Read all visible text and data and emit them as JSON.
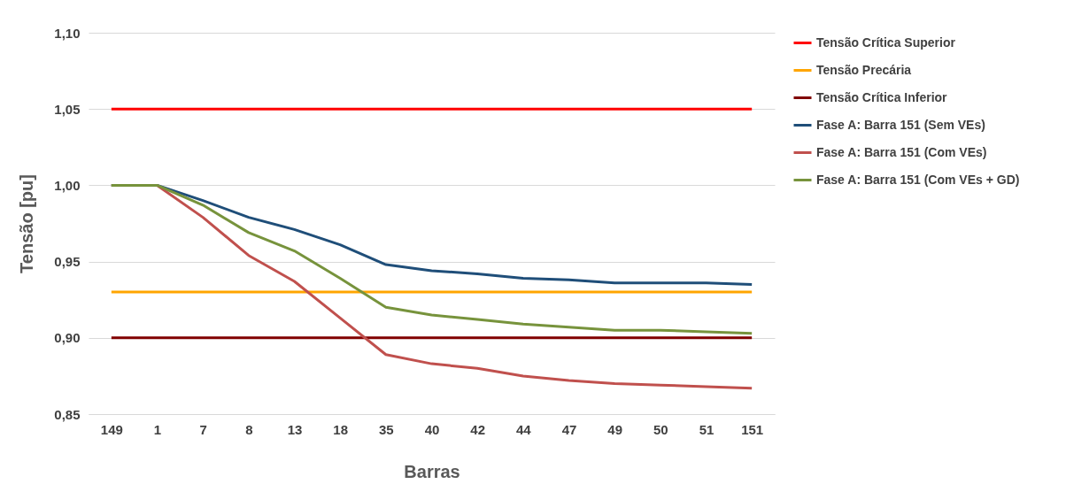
{
  "chart_data": {
    "type": "line",
    "xlabel": "Barras",
    "ylabel": "Tensão [pu]",
    "categories": [
      "149",
      "1",
      "7",
      "8",
      "13",
      "18",
      "35",
      "40",
      "42",
      "44",
      "47",
      "49",
      "50",
      "51",
      "151"
    ],
    "ylim": [
      0.85,
      1.1
    ],
    "yticks": [
      {
        "value": 0.85,
        "label": "0,85"
      },
      {
        "value": 0.9,
        "label": "0,90"
      },
      {
        "value": 0.95,
        "label": "0,95"
      },
      {
        "value": 1.0,
        "label": "1,00"
      },
      {
        "value": 1.05,
        "label": "1,05"
      },
      {
        "value": 1.1,
        "label": "1,10"
      }
    ],
    "grid": "y",
    "legend": "right",
    "line_style": "solid",
    "marker": "none",
    "series": [
      {
        "name": "Tensão Crítica Superior",
        "color": "#ff0000",
        "values": [
          1.05,
          1.05,
          1.05,
          1.05,
          1.05,
          1.05,
          1.05,
          1.05,
          1.05,
          1.05,
          1.05,
          1.05,
          1.05,
          1.05,
          1.05
        ]
      },
      {
        "name": "Tensão Precária",
        "color": "#ffa500",
        "values": [
          0.93,
          0.93,
          0.93,
          0.93,
          0.93,
          0.93,
          0.93,
          0.93,
          0.93,
          0.93,
          0.93,
          0.93,
          0.93,
          0.93,
          0.93
        ]
      },
      {
        "name": "Tensão Crítica Inferior",
        "color": "#800000",
        "values": [
          0.9,
          0.9,
          0.9,
          0.9,
          0.9,
          0.9,
          0.9,
          0.9,
          0.9,
          0.9,
          0.9,
          0.9,
          0.9,
          0.9,
          0.9
        ]
      },
      {
        "name": "Fase A: Barra 151 (Sem VEs)",
        "color": "#1f4e79",
        "values": [
          1.0,
          1.0,
          0.99,
          0.979,
          0.971,
          0.961,
          0.948,
          0.944,
          0.942,
          0.939,
          0.938,
          0.936,
          0.936,
          0.936,
          0.935
        ]
      },
      {
        "name": "Fase A: Barra 151 (Com VEs)",
        "color": "#c0504d",
        "values": [
          1.0,
          1.0,
          0.979,
          0.954,
          0.937,
          0.913,
          0.889,
          0.883,
          0.88,
          0.875,
          0.872,
          0.87,
          0.869,
          0.868,
          0.867
        ]
      },
      {
        "name": "Fase A: Barra 151 (Com VEs + GD)",
        "color": "#77933c",
        "values": [
          1.0,
          1.0,
          0.987,
          0.969,
          0.957,
          0.939,
          0.92,
          0.915,
          0.912,
          0.909,
          0.907,
          0.905,
          0.905,
          0.904,
          0.903
        ]
      }
    ]
  }
}
